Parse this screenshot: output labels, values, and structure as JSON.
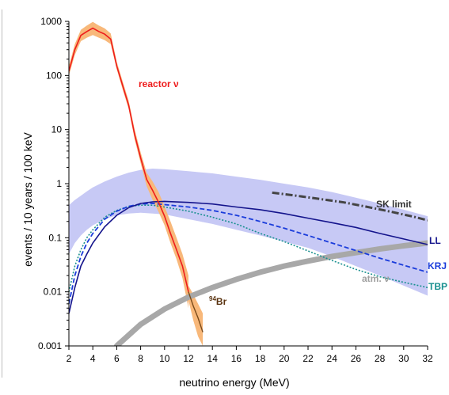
{
  "chart_data": {
    "type": "line",
    "xlabel": "neutrino energy (MeV)",
    "ylabel": "events  / 10 years / 100 keV",
    "xlim": [
      2,
      32
    ],
    "ylim": [
      0.001,
      1000
    ],
    "y_scale": "log",
    "x_ticks": [
      "2",
      "4",
      "6",
      "8",
      "10",
      "12",
      "14",
      "16",
      "18",
      "20",
      "22",
      "24",
      "26",
      "28",
      "30",
      "32"
    ],
    "y_ticks": [
      "0.001",
      "0.01",
      "0.1",
      "1",
      "10",
      "100",
      "1000"
    ],
    "grid": false,
    "colors": {
      "reactor": "#ee1c1c",
      "reactor_band": "#f8b87a",
      "blue_band": "#c7c9f5",
      "LL": "#14148c",
      "KRJ": "#1a3cdb",
      "TBP": "#1a9090",
      "SK": "#444444",
      "atm": "#a8a8a8",
      "Br": "#7a4a1a"
    },
    "series": [
      {
        "name": "reactor ν",
        "x": [
          2,
          2.5,
          3,
          3.5,
          4,
          4.5,
          5,
          5.5,
          6,
          6.5,
          7,
          7.5,
          8,
          8.5,
          9,
          9.5,
          10,
          10.5,
          11,
          11.5,
          12
        ],
        "y": [
          120,
          300,
          550,
          650,
          750,
          650,
          580,
          470,
          150,
          65,
          28,
          8,
          3,
          1.2,
          0.75,
          0.45,
          0.25,
          0.12,
          0.06,
          0.03,
          0.01
        ],
        "band_y_low": [
          100,
          240,
          430,
          500,
          560,
          500,
          450,
          380,
          130,
          55,
          24,
          6.5,
          2.4,
          0.9,
          0.5,
          0.3,
          0.17,
          0.08,
          0.04,
          0.018,
          0.005
        ],
        "band_y_high": [
          150,
          380,
          700,
          840,
          980,
          840,
          740,
          600,
          180,
          78,
          34,
          10,
          3.8,
          1.6,
          1.1,
          0.7,
          0.38,
          0.2,
          0.1,
          0.05,
          0.02
        ]
      },
      {
        "name": "94Br",
        "x": [
          12,
          12.4,
          12.8,
          13.2
        ],
        "y": [
          0.01,
          0.0055,
          0.0033,
          0.0018
        ],
        "band_y_low": [
          0.007,
          0.003,
          0.0015,
          0.001
        ],
        "band_y_high": [
          0.013,
          0.009,
          0.006,
          0.004
        ]
      },
      {
        "name": "SK limit",
        "x": [
          19,
          21,
          23,
          25,
          27,
          29,
          31,
          32
        ],
        "y": [
          0.68,
          0.6,
          0.52,
          0.45,
          0.37,
          0.3,
          0.24,
          0.21
        ]
      },
      {
        "name": "LL",
        "x": [
          2,
          2.5,
          3,
          3.5,
          4,
          5,
          6,
          7,
          8,
          9,
          10,
          12,
          14,
          16,
          18,
          20,
          22,
          24,
          26,
          28,
          30,
          32
        ],
        "y": [
          0.004,
          0.012,
          0.03,
          0.05,
          0.08,
          0.16,
          0.26,
          0.36,
          0.43,
          0.46,
          0.47,
          0.45,
          0.42,
          0.37,
          0.33,
          0.28,
          0.23,
          0.19,
          0.155,
          0.12,
          0.095,
          0.075
        ]
      },
      {
        "name": "KRJ",
        "x": [
          2,
          2.5,
          3,
          3.5,
          4,
          5,
          6,
          7,
          8,
          9,
          10,
          12,
          14,
          16,
          18,
          20,
          22,
          24,
          26,
          28,
          30,
          32
        ],
        "y": [
          0.006,
          0.02,
          0.045,
          0.08,
          0.12,
          0.22,
          0.31,
          0.38,
          0.42,
          0.43,
          0.41,
          0.37,
          0.32,
          0.26,
          0.2,
          0.15,
          0.11,
          0.08,
          0.058,
          0.042,
          0.031,
          0.023
        ]
      },
      {
        "name": "TBP",
        "x": [
          2,
          2.5,
          3,
          3.5,
          4,
          5,
          6,
          7,
          8,
          9,
          10,
          12,
          14,
          16,
          18,
          20,
          22,
          24,
          26,
          28,
          30,
          32
        ],
        "y": [
          0.01,
          0.03,
          0.06,
          0.1,
          0.14,
          0.24,
          0.32,
          0.38,
          0.4,
          0.4,
          0.37,
          0.31,
          0.24,
          0.18,
          0.12,
          0.085,
          0.057,
          0.038,
          0.026,
          0.019,
          0.015,
          0.012
        ]
      },
      {
        "name": "atm. ν",
        "x": [
          6,
          8,
          10,
          12,
          14,
          16,
          18,
          20,
          22,
          24,
          26,
          28,
          30,
          32
        ],
        "y": [
          0.001,
          0.0025,
          0.0048,
          0.008,
          0.012,
          0.017,
          0.023,
          0.03,
          0.037,
          0.045,
          0.053,
          0.062,
          0.071,
          0.08
        ]
      }
    ],
    "band": {
      "x": [
        2,
        2.5,
        3,
        3.5,
        4,
        5,
        6,
        7,
        8,
        9,
        10,
        12,
        14,
        16,
        18,
        20,
        22,
        24,
        26,
        28,
        30,
        32
      ],
      "y_low": [
        0.05,
        0.08,
        0.11,
        0.14,
        0.17,
        0.22,
        0.26,
        0.28,
        0.29,
        0.28,
        0.27,
        0.22,
        0.18,
        0.14,
        0.11,
        0.085,
        0.065,
        0.045,
        0.03,
        0.02,
        0.013,
        0.0085
      ],
      "y_high": [
        0.4,
        0.5,
        0.6,
        0.72,
        0.85,
        1.1,
        1.35,
        1.6,
        1.8,
        1.9,
        1.85,
        1.7,
        1.55,
        1.35,
        1.18,
        1.0,
        0.85,
        0.7,
        0.55,
        0.43,
        0.33,
        0.25
      ]
    },
    "labels": {
      "reactor": "reactor ν",
      "sk": "SK limit",
      "LL": "LL",
      "KRJ": "KRJ",
      "TBP": "TBP",
      "atm": "atm. ν",
      "br_sup": "94",
      "br": "Br"
    }
  }
}
